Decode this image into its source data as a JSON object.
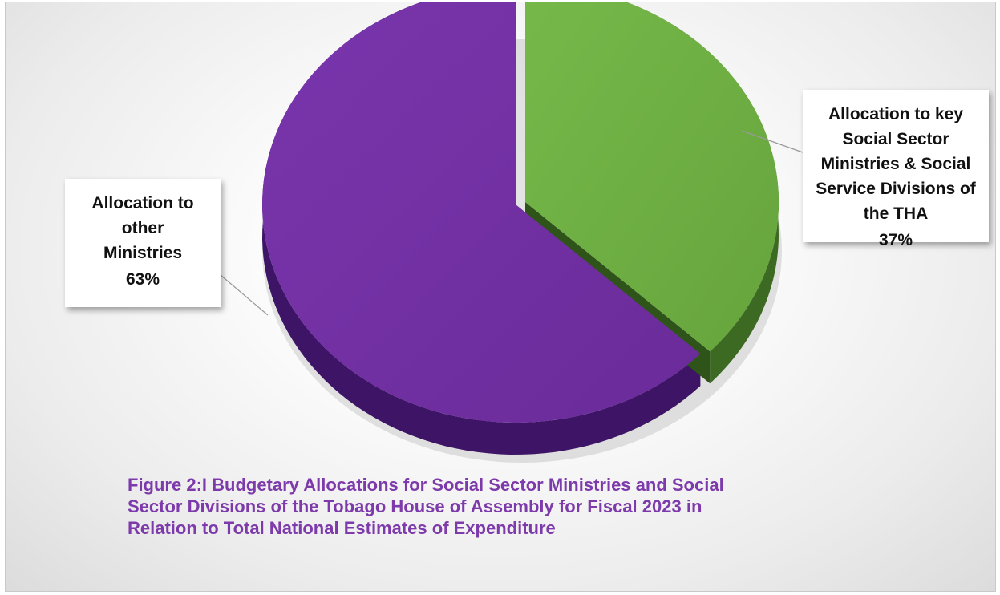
{
  "chart_data": {
    "type": "pie",
    "style": "3D exploded",
    "slices": [
      {
        "label_lines": [
          "Allocation to key",
          "Social Sector",
          "Ministries & Social",
          "Service Divisions of",
          "the THA"
        ],
        "percent_label": "37%",
        "value": 37,
        "color": "#6fb044",
        "side_color": "#3d6a22"
      },
      {
        "label_lines": [
          "Allocation to",
          "other",
          "Ministries"
        ],
        "percent_label": "63%",
        "value": 63,
        "color": "#7030a0",
        "side_color": "#3d1466"
      }
    ],
    "caption_lines": [
      "Figure 2:I Budgetary Allocations for Social Sector Ministries and Social",
      "Sector Divisions of the Tobago House of Assembly for Fiscal 2023 in",
      "Relation to Total National Estimates of Expenditure"
    ],
    "legend": "none",
    "caption_color": "#7d3aab"
  }
}
